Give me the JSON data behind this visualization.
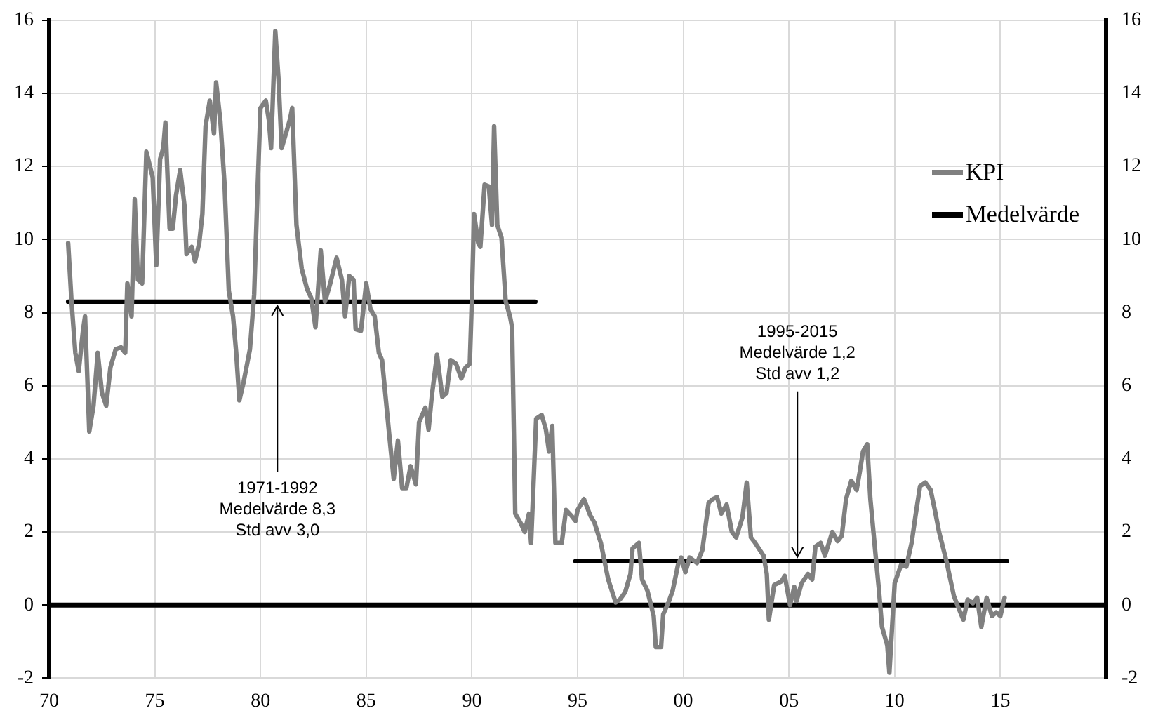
{
  "chart_data": {
    "type": "line",
    "legend": "top right",
    "grid": true,
    "marker": "none",
    "line_style": "solid",
    "xlim": [
      1970,
      2020
    ],
    "xticks": [
      {
        "value": 1970,
        "label": "70"
      },
      {
        "value": 1975,
        "label": "75"
      },
      {
        "value": 1980,
        "label": "80"
      },
      {
        "value": 1985,
        "label": "85"
      },
      {
        "value": 1990,
        "label": "90"
      },
      {
        "value": 1995,
        "label": "95"
      },
      {
        "value": 2000,
        "label": "00"
      },
      {
        "value": 2005,
        "label": "05"
      },
      {
        "value": 2010,
        "label": "10"
      },
      {
        "value": 2015,
        "label": "15"
      },
      {
        "value": 2020,
        "label": null
      }
    ],
    "ylim": [
      -2,
      16
    ],
    "yticks": [
      -2,
      0,
      2,
      4,
      6,
      8,
      10,
      12,
      14,
      16
    ],
    "y2lim": [
      -2,
      16
    ],
    "y2ticks": [
      -2,
      0,
      2,
      4,
      6,
      8,
      10,
      12,
      14,
      16
    ],
    "ref_lines": [
      {
        "axis": "y",
        "value": 0,
        "color": "#000000"
      }
    ],
    "annotations": [
      {
        "text": "1971-1992\nMedelvärde 8,3\nStd avv 3,0",
        "x": 1980.8,
        "y": 8.3
      },
      {
        "text": "1995-2015\nMedelvärde 1,2\nStd avv 1,2",
        "x": 2005.4,
        "y": 1.2
      }
    ],
    "series": [
      {
        "name": "KPI",
        "color": "#808080",
        "x": [
          1970.9,
          1971.06,
          1971.24,
          1971.4,
          1971.6,
          1971.7,
          1971.9,
          1972.1,
          1972.3,
          1972.5,
          1972.7,
          1972.9,
          1973.15,
          1973.4,
          1973.6,
          1973.7,
          1973.9,
          1974.05,
          1974.2,
          1974.4,
          1974.6,
          1974.9,
          1975.07,
          1975.25,
          1975.4,
          1975.5,
          1975.7,
          1975.85,
          1976,
          1976.2,
          1976.4,
          1976.5,
          1976.75,
          1976.9,
          1977.1,
          1977.25,
          1977.4,
          1977.6,
          1977.8,
          1977.9,
          1978.1,
          1978.3,
          1978.5,
          1978.7,
          1978.85,
          1979,
          1979.2,
          1979.5,
          1979.7,
          1979.85,
          1980,
          1980.25,
          1980.4,
          1980.5,
          1980.7,
          1980.85,
          1981,
          1981.2,
          1981.4,
          1981.5,
          1981.7,
          1981.95,
          1982.2,
          1982.4,
          1982.6,
          1982.85,
          1983.05,
          1983.3,
          1983.6,
          1983.85,
          1984,
          1984.2,
          1984.4,
          1984.5,
          1984.75,
          1985,
          1985.2,
          1985.4,
          1985.6,
          1985.75,
          1985.9,
          1986.1,
          1986.3,
          1986.5,
          1986.7,
          1986.9,
          1987.1,
          1987.35,
          1987.5,
          1987.8,
          1987.95,
          1988.1,
          1988.35,
          1988.6,
          1988.8,
          1989,
          1989.25,
          1989.5,
          1989.7,
          1989.9,
          1990,
          1990.1,
          1990.3,
          1990.4,
          1990.6,
          1990.8,
          1990.95,
          1991.05,
          1991.2,
          1991.4,
          1991.6,
          1991.8,
          1991.9,
          1992.05,
          1992.3,
          1992.5,
          1992.7,
          1992.8,
          1993.04,
          1993.3,
          1993.5,
          1993.65,
          1993.8,
          1993.95,
          1994.25,
          1994.45,
          1994.7,
          1994.9,
          1995,
          1995.3,
          1995.6,
          1995.8,
          1996.1,
          1996.45,
          1996.8,
          1997,
          1997.25,
          1997.5,
          1997.6,
          1997.9,
          1998.05,
          1998.3,
          1998.6,
          1998.7,
          1998.95,
          1999.05,
          1999.3,
          1999.5,
          1999.75,
          1999.9,
          2000.1,
          2000.3,
          2000.65,
          2000.9,
          2001.2,
          2001.4,
          2001.6,
          2001.8,
          2002.05,
          2002.3,
          2002.5,
          2002.8,
          2003,
          2003.2,
          2003.4,
          2003.8,
          2003.95,
          2004.05,
          2004.3,
          2004.65,
          2004.8,
          2005.05,
          2005.25,
          2005.35,
          2005.6,
          2005.9,
          2006.1,
          2006.25,
          2006.5,
          2006.7,
          2007.05,
          2007.3,
          2007.5,
          2007.7,
          2007.95,
          2008.2,
          2008.35,
          2008.5,
          2008.7,
          2008.85,
          2009.1,
          2009.25,
          2009.4,
          2009.65,
          2009.75,
          2010,
          2010.3,
          2010.55,
          2010.8,
          2011,
          2011.2,
          2011.45,
          2011.7,
          2011.9,
          2012.1,
          2012.45,
          2012.8,
          2013,
          2013.25,
          2013.45,
          2013.7,
          2013.9,
          2014.1,
          2014.35,
          2014.6,
          2014.8,
          2015,
          2015.2
        ],
        "values": [
          9.9,
          8.3,
          6.9,
          6.4,
          7.5,
          7.9,
          4.75,
          5.45,
          6.9,
          5.8,
          5.45,
          6.5,
          7.0,
          7.05,
          6.9,
          8.8,
          7.9,
          11.1,
          8.9,
          8.8,
          12.4,
          11.7,
          9.3,
          12.2,
          12.5,
          13.2,
          10.3,
          10.3,
          11.2,
          11.9,
          10.95,
          9.6,
          9.8,
          9.4,
          9.9,
          10.7,
          13.1,
          13.8,
          12.9,
          14.3,
          13.25,
          11.5,
          8.6,
          7.9,
          6.9,
          5.6,
          6.1,
          7.0,
          8.5,
          11.2,
          13.6,
          13.8,
          13.25,
          12.5,
          15.7,
          14.4,
          12.5,
          12.9,
          13.3,
          13.6,
          10.4,
          9.2,
          8.65,
          8.4,
          7.6,
          9.7,
          8.3,
          8.8,
          9.5,
          8.9,
          7.9,
          9.0,
          8.9,
          7.55,
          7.5,
          8.8,
          8.1,
          7.9,
          6.9,
          6.7,
          5.8,
          4.6,
          3.45,
          4.5,
          3.2,
          3.2,
          3.8,
          3.3,
          5.0,
          5.4,
          4.8,
          5.7,
          6.85,
          5.7,
          5.8,
          6.7,
          6.6,
          6.2,
          6.5,
          6.6,
          8.4,
          10.7,
          9.9,
          9.8,
          11.5,
          11.45,
          10.4,
          13.1,
          10.4,
          10.05,
          8.3,
          7.9,
          7.6,
          2.5,
          2.25,
          2.0,
          2.5,
          1.7,
          5.1,
          5.2,
          4.8,
          4.2,
          4.9,
          1.7,
          1.7,
          2.6,
          2.45,
          2.3,
          2.6,
          2.9,
          2.45,
          2.25,
          1.7,
          0.7,
          0.07,
          0.15,
          0.35,
          0.85,
          1.55,
          1.7,
          0.7,
          0.4,
          -0.3,
          -1.15,
          -1.15,
          -0.25,
          0.07,
          0.4,
          1.1,
          1.3,
          0.9,
          1.3,
          1.15,
          1.5,
          2.8,
          2.9,
          2.95,
          2.5,
          2.75,
          2.0,
          1.85,
          2.4,
          3.35,
          1.85,
          1.7,
          1.35,
          0.85,
          -0.4,
          0.55,
          0.65,
          0.8,
          0,
          0.5,
          0.1,
          0.6,
          0.85,
          0.7,
          1.6,
          1.7,
          1.35,
          2.0,
          1.75,
          1.9,
          2.9,
          3.4,
          3.15,
          3.65,
          4.2,
          4.4,
          2.9,
          1.35,
          0.45,
          -0.6,
          -1.1,
          -1.85,
          0.6,
          1.1,
          1.05,
          1.7,
          2.5,
          3.25,
          3.35,
          3.15,
          2.6,
          2.0,
          1.2,
          0.25,
          -0.05,
          -0.4,
          0.15,
          0.05,
          0.2,
          -0.6,
          0.2,
          -0.3,
          -0.2,
          -0.3,
          0.2
        ]
      },
      {
        "name": "Medelvärde",
        "color": "#000000",
        "x": [
          1970.9,
          1993.0,
          1994.0,
          1994.9,
          2015.3
        ],
        "values": [
          8.3,
          8.3,
          null,
          1.2,
          1.2
        ]
      }
    ]
  }
}
